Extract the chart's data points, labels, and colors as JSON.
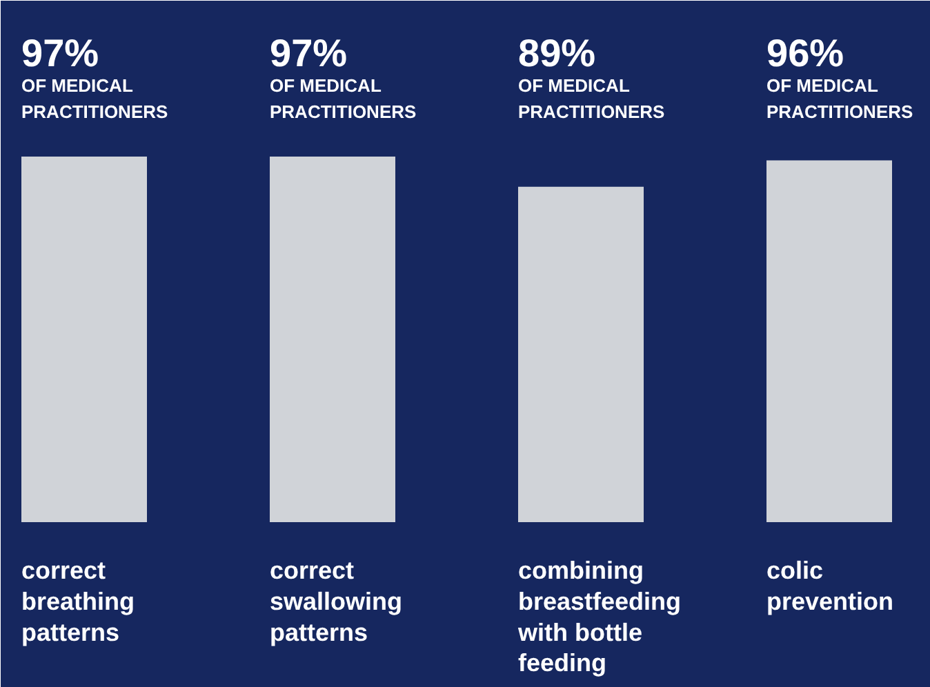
{
  "chart_data": {
    "type": "bar",
    "categories": [
      "correct breathing patterns",
      "correct swallowing patterns",
      "combining breastfeeding with bottle feeding",
      "colic prevention"
    ],
    "values": [
      97,
      97,
      89,
      96
    ],
    "value_labels": [
      "97%",
      "97%",
      "89%",
      "96%"
    ],
    "color": "#d0d3d8",
    "annotations": [
      "OF MEDICAL PRACTITIONERS",
      "OF MEDICAL PRACTITIONERS",
      "OF MEDICAL PRACTITIONERS",
      "OF MEDICAL PRACTITIONERS"
    ],
    "grid": false
  }
}
